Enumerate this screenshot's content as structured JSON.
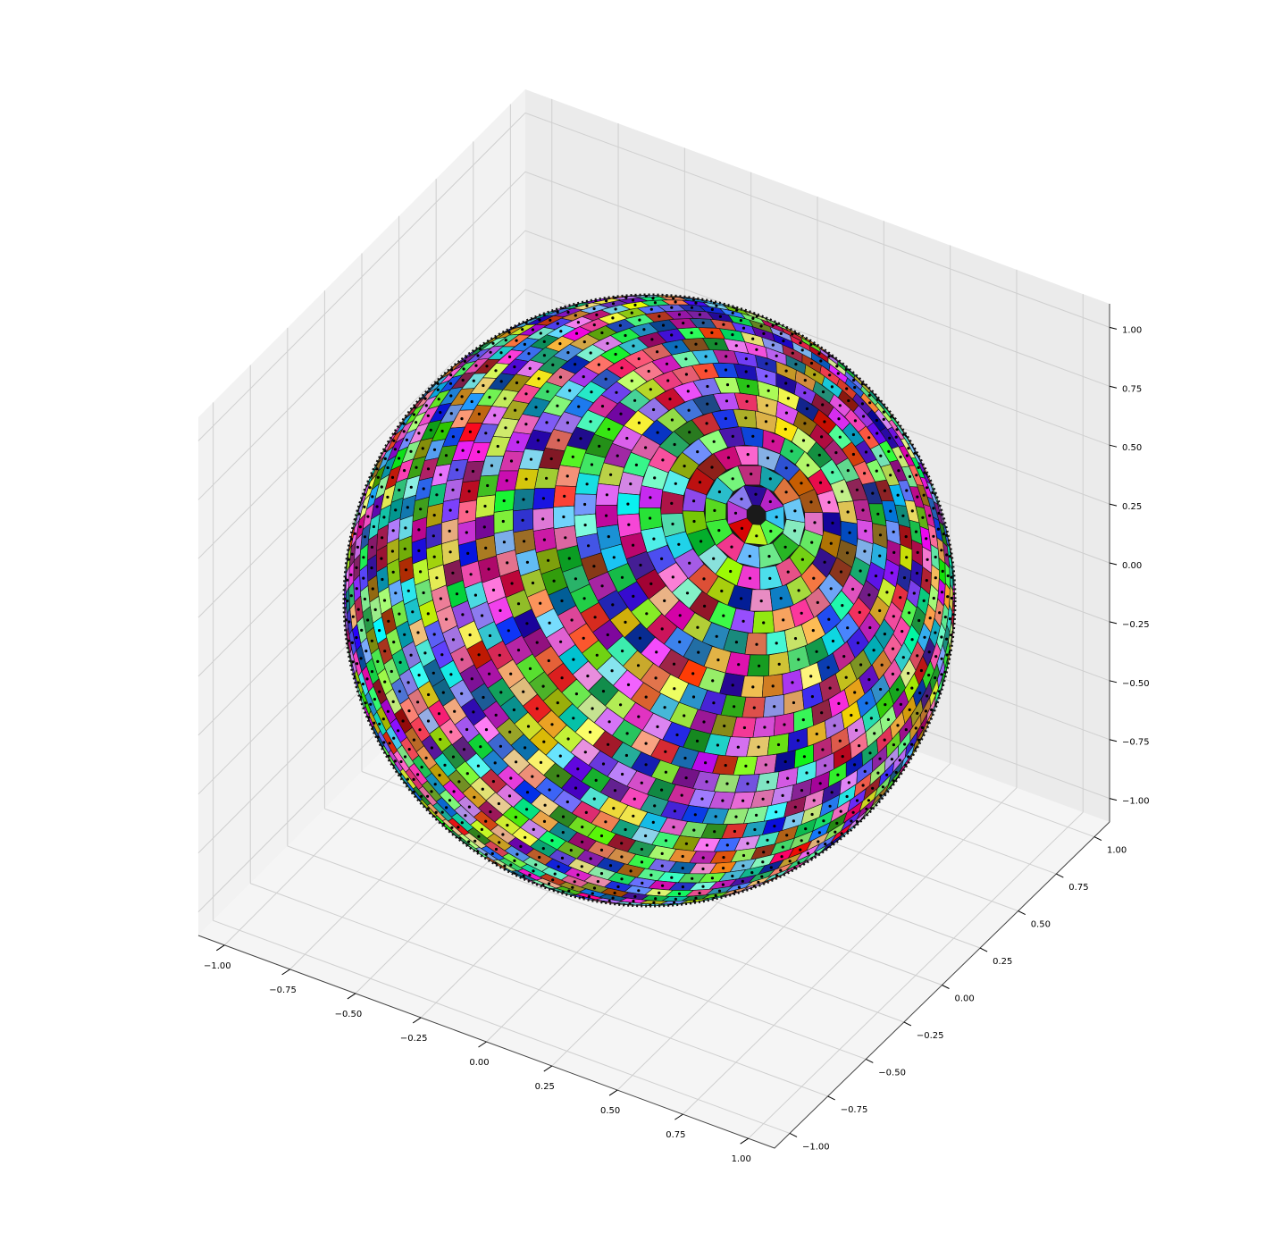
{
  "chart_data": {
    "type": "scatter",
    "projection": "3d",
    "description_shape": "unit sphere",
    "title": "",
    "xlabel": "",
    "ylabel": "",
    "zlabel": "",
    "xlim": [
      -1.1,
      1.1
    ],
    "ylim": [
      -1.1,
      1.1
    ],
    "zlim": [
      -1.1,
      1.1
    ],
    "grid": true,
    "x_ticks": [
      "−1.00",
      "−0.75",
      "−0.50",
      "−0.25",
      "0.00",
      "0.25",
      "0.50",
      "0.75",
      "1.00"
    ],
    "y_ticks": [
      "−1.00",
      "−0.75",
      "−0.50",
      "−0.25",
      "0.00",
      "0.25",
      "0.50",
      "0.75",
      "1.00"
    ],
    "z_ticks": [
      "−1.00",
      "−0.75",
      "−0.50",
      "−0.25",
      "0.00",
      "0.25",
      "0.50",
      "0.75",
      "1.00"
    ],
    "x_tick_values": [
      -1.0,
      -0.75,
      -0.5,
      -0.25,
      0.0,
      0.25,
      0.5,
      0.75,
      1.0
    ],
    "y_tick_values": [
      -1.0,
      -0.75,
      -0.5,
      -0.25,
      0.0,
      0.25,
      0.5,
      0.75,
      1.0
    ],
    "z_tick_values": [
      -1.0,
      -0.75,
      -0.5,
      -0.25,
      0.0,
      0.25,
      0.5,
      0.75,
      1.0
    ],
    "points": "Voronoi-like tessellation of the unit sphere: many small randomly colored polygonal cells, each with a black center point",
    "point_color": "#000000",
    "pane_colors": [
      "#f2f2f2",
      "#ebebeb",
      "#f5f5f5"
    ],
    "grid_color": "#cfcfcf"
  }
}
